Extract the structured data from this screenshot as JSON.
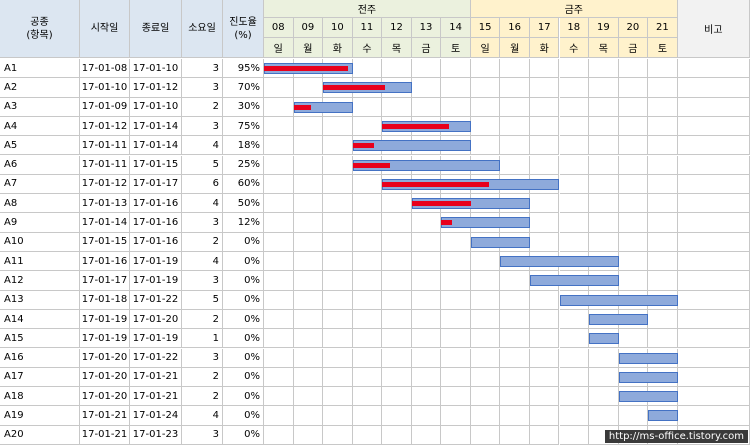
{
  "headers": {
    "task": "공종\n(항목)",
    "start": "시작일",
    "end": "종료일",
    "duration": "소요일",
    "progress": "진도율\n(%)",
    "week1": "전주",
    "week2": "금주",
    "remark": "비고"
  },
  "days": [
    {
      "num": "08",
      "dow": "일"
    },
    {
      "num": "09",
      "dow": "월"
    },
    {
      "num": "10",
      "dow": "화"
    },
    {
      "num": "11",
      "dow": "수"
    },
    {
      "num": "12",
      "dow": "목"
    },
    {
      "num": "13",
      "dow": "금"
    },
    {
      "num": "14",
      "dow": "토"
    },
    {
      "num": "15",
      "dow": "일"
    },
    {
      "num": "16",
      "dow": "월"
    },
    {
      "num": "17",
      "dow": "화"
    },
    {
      "num": "18",
      "dow": "수"
    },
    {
      "num": "19",
      "dow": "목"
    },
    {
      "num": "20",
      "dow": "금"
    },
    {
      "num": "21",
      "dow": "토"
    }
  ],
  "tasks": [
    {
      "name": "A1",
      "start": "17-01-08",
      "end": "17-01-10",
      "duration": 3,
      "progress": "95%",
      "pct": 0.95
    },
    {
      "name": "A2",
      "start": "17-01-10",
      "end": "17-01-12",
      "duration": 3,
      "progress": "70%",
      "pct": 0.7
    },
    {
      "name": "A3",
      "start": "17-01-09",
      "end": "17-01-10",
      "duration": 2,
      "progress": "30%",
      "pct": 0.3
    },
    {
      "name": "A4",
      "start": "17-01-12",
      "end": "17-01-14",
      "duration": 3,
      "progress": "75%",
      "pct": 0.75
    },
    {
      "name": "A5",
      "start": "17-01-11",
      "end": "17-01-14",
      "duration": 4,
      "progress": "18%",
      "pct": 0.18
    },
    {
      "name": "A6",
      "start": "17-01-11",
      "end": "17-01-15",
      "duration": 5,
      "progress": "25%",
      "pct": 0.25
    },
    {
      "name": "A7",
      "start": "17-01-12",
      "end": "17-01-17",
      "duration": 6,
      "progress": "60%",
      "pct": 0.6
    },
    {
      "name": "A8",
      "start": "17-01-13",
      "end": "17-01-16",
      "duration": 4,
      "progress": "50%",
      "pct": 0.5
    },
    {
      "name": "A9",
      "start": "17-01-14",
      "end": "17-01-16",
      "duration": 3,
      "progress": "12%",
      "pct": 0.12
    },
    {
      "name": "A10",
      "start": "17-01-15",
      "end": "17-01-16",
      "duration": 2,
      "progress": "0%",
      "pct": 0
    },
    {
      "name": "A11",
      "start": "17-01-16",
      "end": "17-01-19",
      "duration": 4,
      "progress": "0%",
      "pct": 0
    },
    {
      "name": "A12",
      "start": "17-01-17",
      "end": "17-01-19",
      "duration": 3,
      "progress": "0%",
      "pct": 0
    },
    {
      "name": "A13",
      "start": "17-01-18",
      "end": "17-01-22",
      "duration": 5,
      "progress": "0%",
      "pct": 0
    },
    {
      "name": "A14",
      "start": "17-01-19",
      "end": "17-01-20",
      "duration": 2,
      "progress": "0%",
      "pct": 0
    },
    {
      "name": "A15",
      "start": "17-01-19",
      "end": "17-01-19",
      "duration": 1,
      "progress": "0%",
      "pct": 0
    },
    {
      "name": "A16",
      "start": "17-01-20",
      "end": "17-01-22",
      "duration": 3,
      "progress": "0%",
      "pct": 0
    },
    {
      "name": "A17",
      "start": "17-01-20",
      "end": "17-01-21",
      "duration": 2,
      "progress": "0%",
      "pct": 0
    },
    {
      "name": "A18",
      "start": "17-01-20",
      "end": "17-01-21",
      "duration": 2,
      "progress": "0%",
      "pct": 0
    },
    {
      "name": "A19",
      "start": "17-01-21",
      "end": "17-01-24",
      "duration": 4,
      "progress": "0%",
      "pct": 0
    },
    {
      "name": "A20",
      "start": "17-01-21",
      "end": "17-01-23",
      "duration": 3,
      "progress": "0%",
      "pct": 0
    }
  ],
  "colors": {
    "plan_bar": "#8eaadb",
    "actual_bar": "#e8001c",
    "header_bg": "#dce6f1",
    "week1_bg": "#ebf1de",
    "week2_bg": "#fff2cc"
  },
  "watermark": "http://ms-office.tistory.com"
}
